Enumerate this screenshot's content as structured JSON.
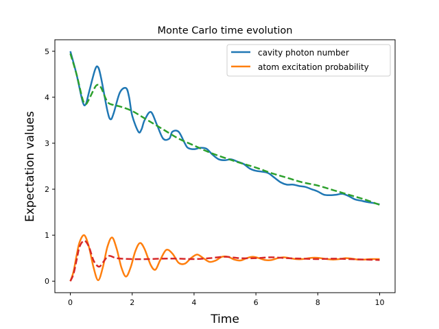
{
  "chart_data": {
    "type": "line",
    "title": "Monte Carlo time evolution",
    "xlabel": "Time",
    "ylabel": "Expectation values",
    "xlim": [
      -0.5,
      10.5
    ],
    "ylim": [
      -0.25,
      5.25
    ],
    "xticks": [
      0,
      2,
      4,
      6,
      8,
      10
    ],
    "yticks": [
      0,
      1,
      2,
      3,
      4,
      5
    ],
    "grid": false,
    "legend": {
      "placement": "top-right",
      "entries": [
        "cavity photon number",
        "atom excitation probability"
      ]
    },
    "series": [
      {
        "name": "cavity photon number",
        "color": "#1f77b4",
        "style": "solid",
        "in_legend": true,
        "x": [
          0,
          0.2,
          0.4,
          0.5,
          0.6,
          0.8,
          0.9,
          1.0,
          1.2,
          1.3,
          1.4,
          1.6,
          1.8,
          1.9,
          2.0,
          2.2,
          2.3,
          2.4,
          2.6,
          2.8,
          3.0,
          3.2,
          3.3,
          3.5,
          3.7,
          3.8,
          4.0,
          4.2,
          4.4,
          4.6,
          4.8,
          5.0,
          5.2,
          5.4,
          5.6,
          5.8,
          6.0,
          6.2,
          6.4,
          6.6,
          6.8,
          7.0,
          7.2,
          7.4,
          7.6,
          7.8,
          8.0,
          8.2,
          8.4,
          8.6,
          8.8,
          9.0,
          9.2,
          9.4,
          9.6,
          9.8,
          10.0
        ],
        "y": [
          5.0,
          4.5,
          3.9,
          3.85,
          4.1,
          4.6,
          4.65,
          4.4,
          3.7,
          3.52,
          3.65,
          4.1,
          4.2,
          4.0,
          3.6,
          3.25,
          3.3,
          3.5,
          3.68,
          3.4,
          3.1,
          3.1,
          3.25,
          3.25,
          3.0,
          2.9,
          2.87,
          2.9,
          2.88,
          2.75,
          2.65,
          2.63,
          2.65,
          2.6,
          2.55,
          2.45,
          2.4,
          2.38,
          2.35,
          2.25,
          2.15,
          2.1,
          2.1,
          2.07,
          2.05,
          2.0,
          1.95,
          1.88,
          1.87,
          1.88,
          1.9,
          1.85,
          1.78,
          1.75,
          1.72,
          1.7,
          1.67
        ]
      },
      {
        "name": "atom excitation probability",
        "color": "#ff7f0e",
        "style": "solid",
        "in_legend": true,
        "x": [
          0,
          0.1,
          0.2,
          0.3,
          0.45,
          0.6,
          0.75,
          0.9,
          1.05,
          1.2,
          1.35,
          1.5,
          1.65,
          1.8,
          1.95,
          2.1,
          2.25,
          2.4,
          2.6,
          2.75,
          2.9,
          3.1,
          3.3,
          3.5,
          3.7,
          3.9,
          4.1,
          4.3,
          4.5,
          4.7,
          4.9,
          5.1,
          5.3,
          5.5,
          5.7,
          5.9,
          6.1,
          6.3,
          6.5,
          6.7,
          6.9,
          7.1,
          7.3,
          7.5,
          7.7,
          7.9,
          8.1,
          8.3,
          8.5,
          8.7,
          8.9,
          9.1,
          9.3,
          9.5,
          9.7,
          9.9,
          10.0
        ],
        "y": [
          0,
          0.2,
          0.55,
          0.85,
          1.0,
          0.75,
          0.3,
          0.02,
          0.3,
          0.75,
          0.95,
          0.7,
          0.3,
          0.1,
          0.3,
          0.65,
          0.83,
          0.7,
          0.35,
          0.25,
          0.45,
          0.68,
          0.6,
          0.4,
          0.38,
          0.5,
          0.58,
          0.5,
          0.42,
          0.45,
          0.53,
          0.53,
          0.47,
          0.45,
          0.5,
          0.53,
          0.5,
          0.46,
          0.46,
          0.5,
          0.52,
          0.5,
          0.48,
          0.48,
          0.5,
          0.51,
          0.5,
          0.48,
          0.47,
          0.48,
          0.5,
          0.49,
          0.47,
          0.47,
          0.48,
          0.48,
          0.48
        ]
      },
      {
        "name": "cavity photon number (average)",
        "color": "#2ca02c",
        "style": "dashed",
        "in_legend": false,
        "x": [
          0,
          0.2,
          0.4,
          0.5,
          0.6,
          0.8,
          0.9,
          1.0,
          1.2,
          1.4,
          1.6,
          2.0,
          2.5,
          3.0,
          3.5,
          4.0,
          4.5,
          5.0,
          5.5,
          6.0,
          6.5,
          7.0,
          7.5,
          8.0,
          8.5,
          9.0,
          9.5,
          10.0
        ],
        "y": [
          4.95,
          4.5,
          3.95,
          3.85,
          3.95,
          4.22,
          4.27,
          4.2,
          3.9,
          3.83,
          3.8,
          3.7,
          3.5,
          3.3,
          3.1,
          2.95,
          2.8,
          2.68,
          2.57,
          2.47,
          2.35,
          2.25,
          2.15,
          2.08,
          1.98,
          1.88,
          1.78,
          1.66
        ]
      },
      {
        "name": "atom excitation probability (average)",
        "color": "#d62728",
        "style": "dashed",
        "in_legend": false,
        "x": [
          0,
          0.1,
          0.2,
          0.3,
          0.45,
          0.6,
          0.75,
          0.9,
          1.0,
          1.1,
          1.25,
          1.5,
          2.0,
          2.5,
          3.0,
          3.5,
          4.0,
          4.5,
          5.0,
          5.5,
          6.0,
          6.5,
          7.0,
          7.5,
          8.0,
          8.5,
          9.0,
          9.5,
          10.0
        ],
        "y": [
          0,
          0.15,
          0.45,
          0.75,
          0.88,
          0.75,
          0.45,
          0.32,
          0.35,
          0.45,
          0.55,
          0.5,
          0.48,
          0.48,
          0.49,
          0.49,
          0.48,
          0.5,
          0.53,
          0.5,
          0.5,
          0.52,
          0.5,
          0.49,
          0.48,
          0.49,
          0.48,
          0.47,
          0.46
        ]
      }
    ]
  }
}
